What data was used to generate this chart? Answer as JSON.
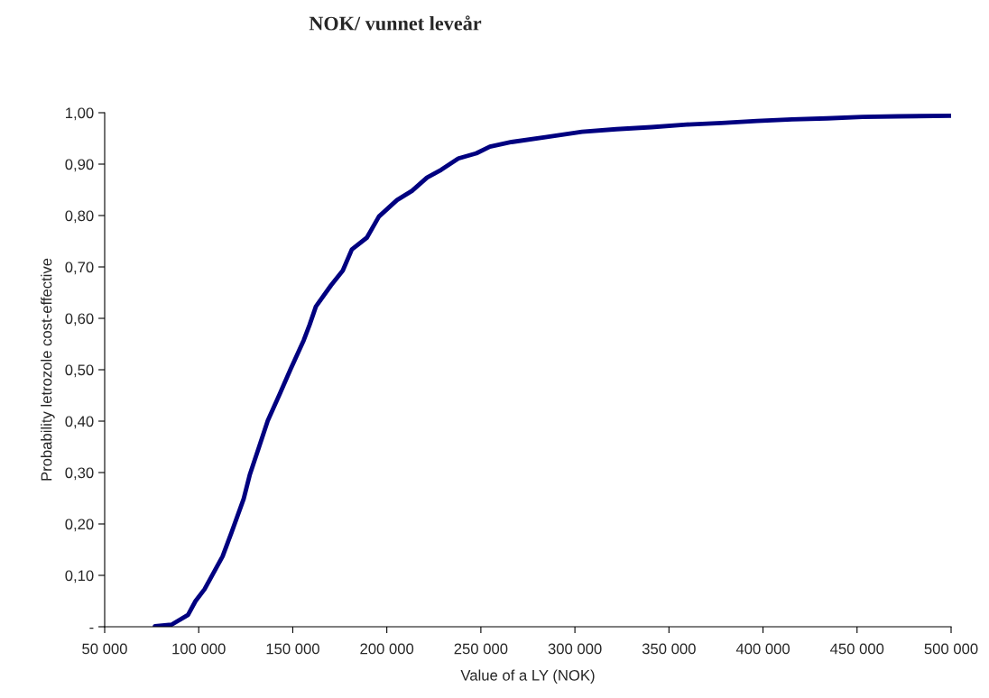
{
  "chart_data": {
    "type": "line",
    "title": "NOK/ vunnet leveår",
    "xlabel": "Value of a LY (NOK)",
    "ylabel": "Probability letrozole cost-effective",
    "x": [
      76700,
      85500,
      94300,
      98300,
      103100,
      112700,
      117500,
      123900,
      127100,
      131900,
      136700,
      143100,
      148700,
      155900,
      159000,
      162300,
      170300,
      176600,
      181400,
      189400,
      195800,
      205400,
      213400,
      221400,
      228900,
      238000,
      247600,
      254800,
      266300,
      285100,
      303800,
      322000,
      340700,
      359400,
      378100,
      396800,
      415500,
      434200,
      452900,
      471700,
      500000
    ],
    "series": [
      {
        "color": "#000080",
        "values": [
          0.001,
          0.004,
          0.023,
          0.05,
          0.073,
          0.137,
          0.184,
          0.249,
          0.295,
          0.348,
          0.401,
          0.453,
          0.5,
          0.558,
          0.588,
          0.623,
          0.664,
          0.693,
          0.734,
          0.757,
          0.798,
          0.83,
          0.848,
          0.874,
          0.889,
          0.911,
          0.921,
          0.934,
          0.943,
          0.953,
          0.963,
          0.968,
          0.972,
          0.977,
          0.98,
          0.984,
          0.987,
          0.989,
          0.992,
          0.993,
          0.994
        ]
      }
    ],
    "xlim": [
      50000,
      500000
    ],
    "xticks": [
      {
        "value": 50000,
        "label": "50 000"
      },
      {
        "value": 100000,
        "label": "100 000"
      },
      {
        "value": 150000,
        "label": "150 000"
      },
      {
        "value": 200000,
        "label": "200 000"
      },
      {
        "value": 250000,
        "label": "250 000"
      },
      {
        "value": 300000,
        "label": "300 000"
      },
      {
        "value": 350000,
        "label": "350 000"
      },
      {
        "value": 400000,
        "label": "400 000"
      },
      {
        "value": 450000,
        "label": "450 000"
      },
      {
        "value": 500000,
        "label": "500 000"
      }
    ],
    "ylim": [
      0,
      1
    ],
    "yticks": [
      {
        "value": 0,
        "label": "-"
      },
      {
        "value": 0.1,
        "label": "0,10"
      },
      {
        "value": 0.2,
        "label": "0,20"
      },
      {
        "value": 0.3,
        "label": "0,30"
      },
      {
        "value": 0.4,
        "label": "0,40"
      },
      {
        "value": 0.5,
        "label": "0,50"
      },
      {
        "value": 0.6,
        "label": "0,60"
      },
      {
        "value": 0.7,
        "label": "0,70"
      },
      {
        "value": 0.8,
        "label": "0,80"
      },
      {
        "value": 0.9,
        "label": "0,90"
      },
      {
        "value": 1.0,
        "label": "1,00"
      }
    ],
    "grid": false
  }
}
